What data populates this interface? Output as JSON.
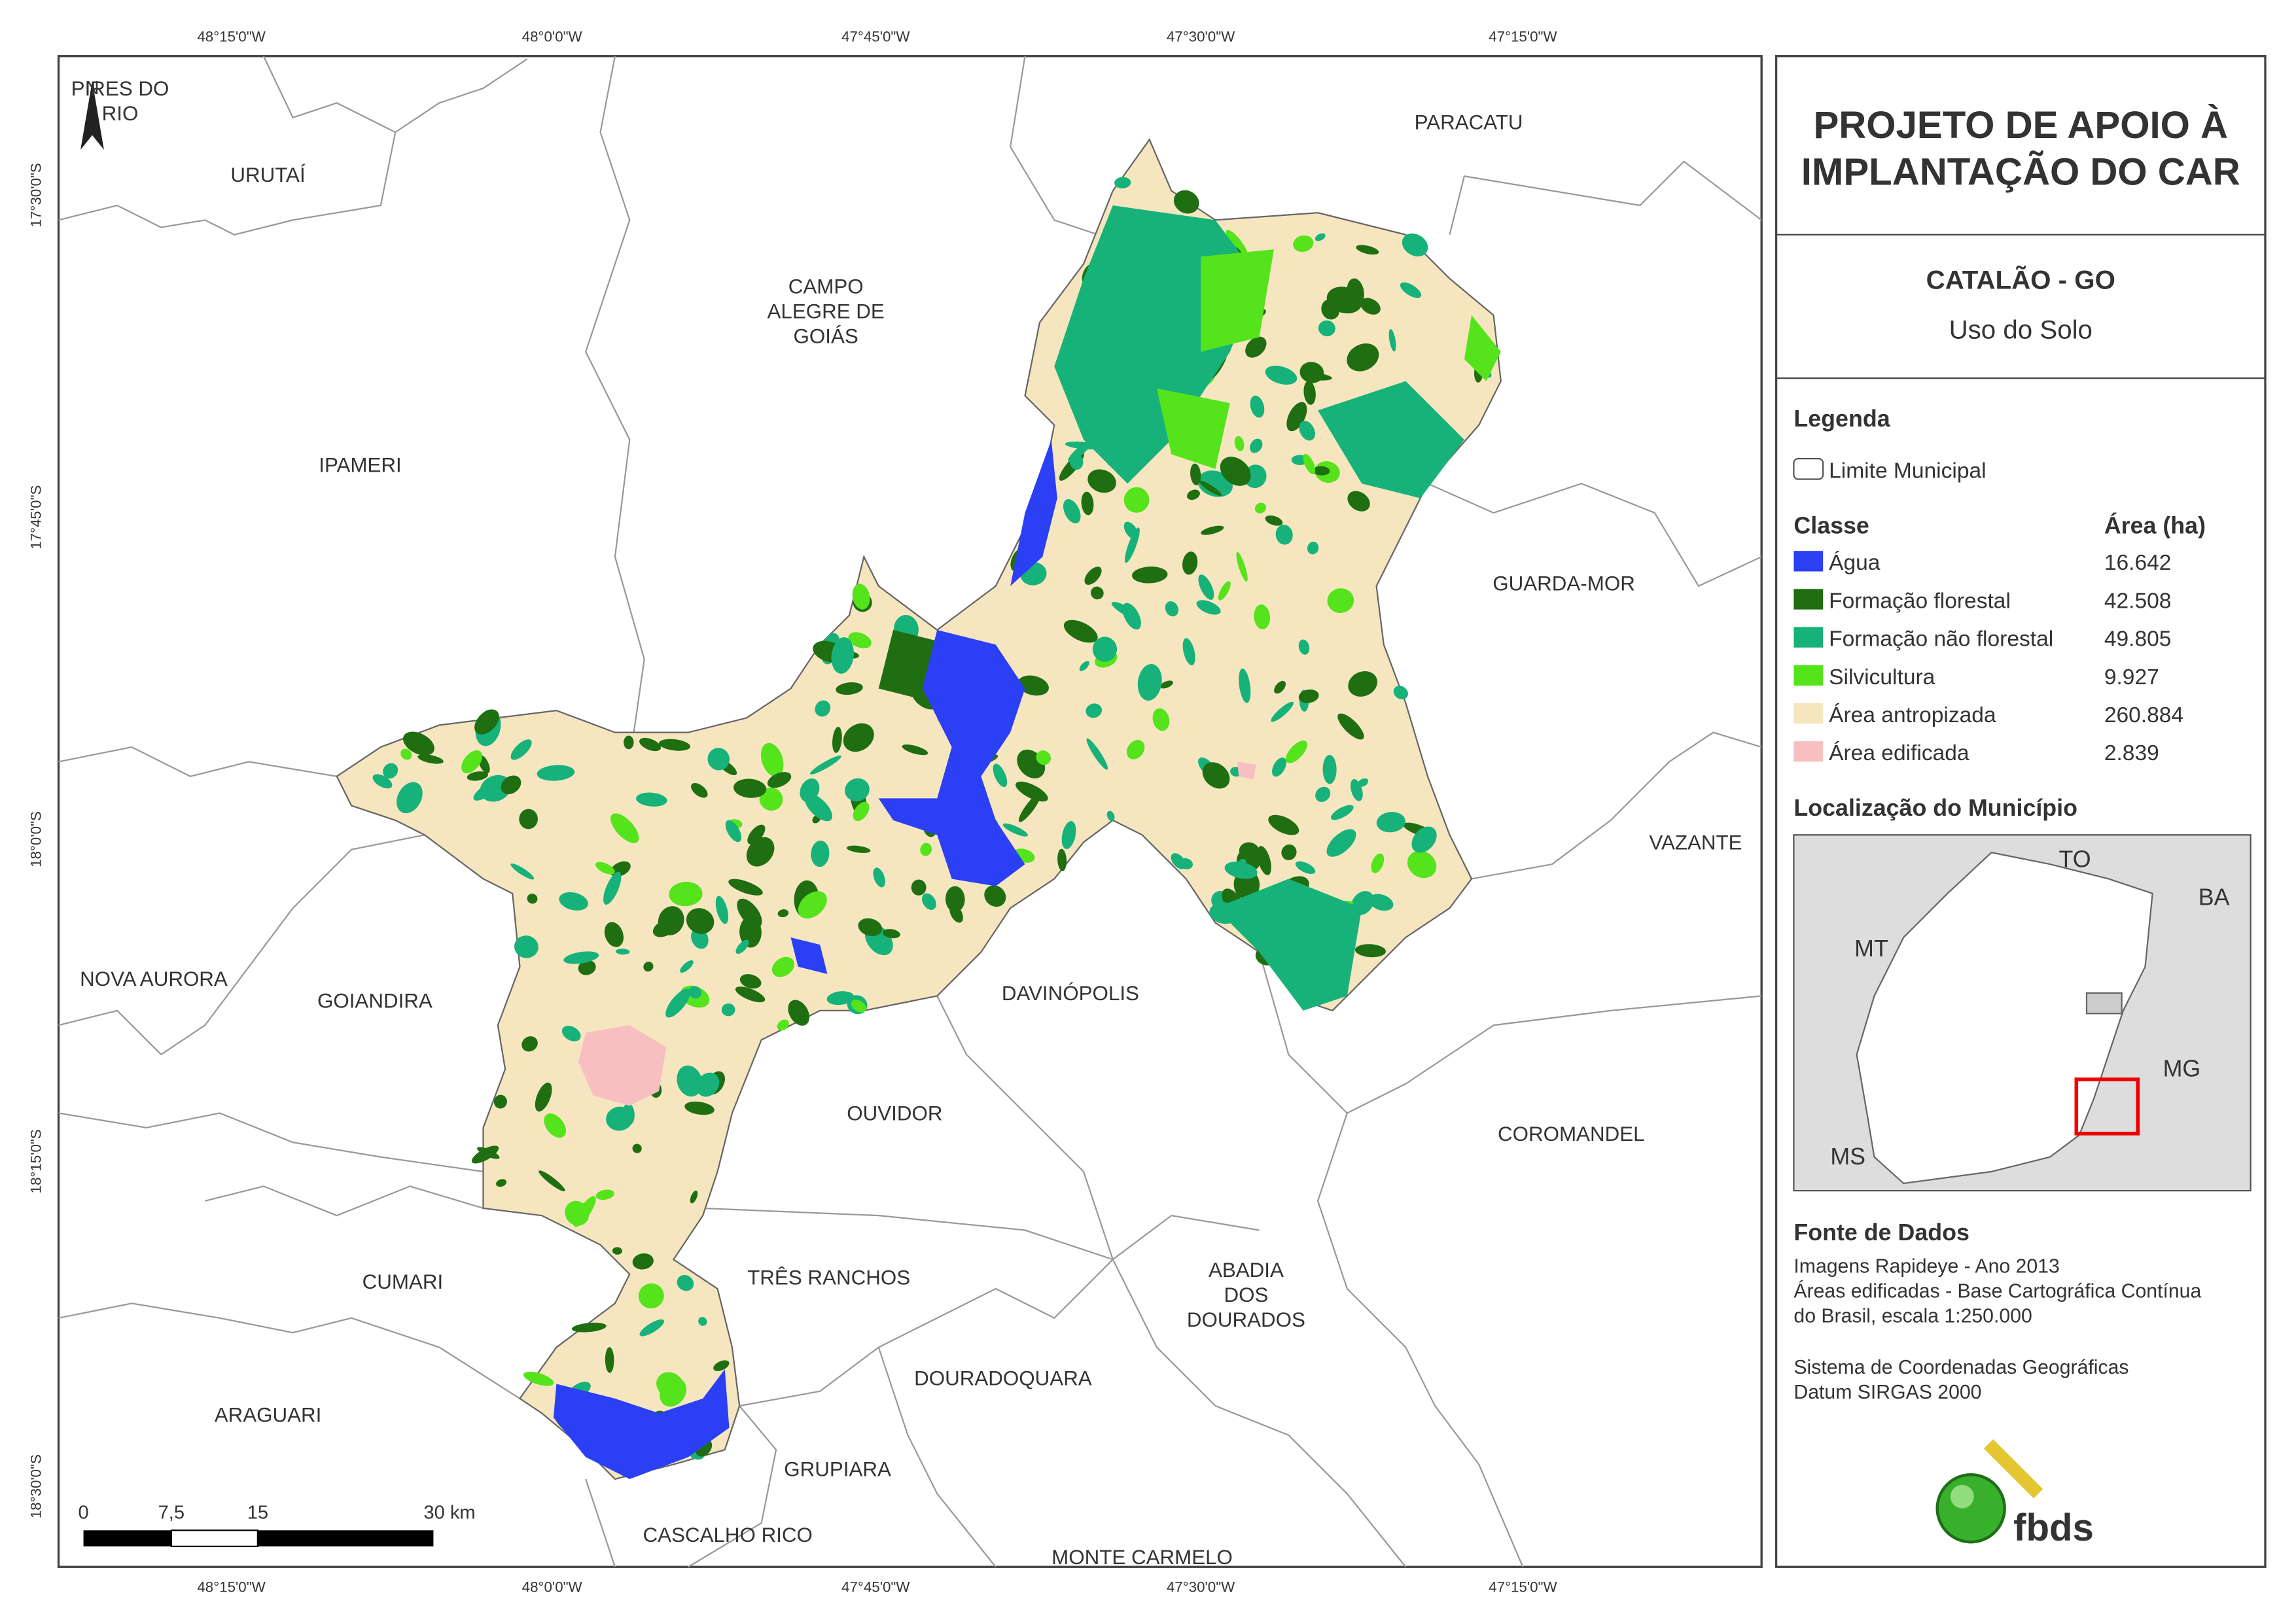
{
  "title": [
    "PROJETO DE APOIO À",
    "IMPLANTAÇÃO DO CAR"
  ],
  "place": "CATALÃO - GO",
  "theme": "Uso do Solo",
  "legend": {
    "title": "Legenda",
    "boundary": "Limite Municipal",
    "class_header": "Classe",
    "area_header": "Área (ha)",
    "classes": [
      {
        "name": "Água",
        "color": "#2b3ff5",
        "area": "16.642"
      },
      {
        "name": "Formação florestal",
        "color": "#1f6e12",
        "area": "42.508"
      },
      {
        "name": "Formação não florestal",
        "color": "#17b27a",
        "area": "49.805"
      },
      {
        "name": "Silvicultura",
        "color": "#55e31c",
        "area": "9.927"
      },
      {
        "name": "Área antropizada",
        "color": "#f6e6c0",
        "area": "260.884"
      },
      {
        "name": "Área edificada",
        "color": "#f8bfc3",
        "area": "2.839"
      }
    ]
  },
  "location": {
    "title": "Localização do Município",
    "labels": [
      "TO",
      "BA",
      "MT",
      "MG",
      "MS"
    ]
  },
  "sources": {
    "title": "Fonte de Dados",
    "lines": [
      "Imagens Rapideye - Ano 2013",
      "Áreas edificadas - Base Cartográfica Contínua",
      "do Brasil, escala 1:250.000",
      "Sistema de Coordenadas Geográficas",
      "Datum SIRGAS 2000"
    ]
  },
  "logo": "fbds",
  "map": {
    "north": "N",
    "longitude_labels": [
      "48°15'0\"W",
      "48°0'0\"W",
      "47°45'0\"W",
      "47°30'0\"W",
      "47°15'0\"W"
    ],
    "latitude_labels": [
      "17°30'0\"S",
      "17°45'0\"S",
      "18°0'0\"S",
      "18°15'0\"S",
      "18°30'0\"S"
    ],
    "scale_labels": [
      "0",
      "7,5",
      "15",
      "30 km"
    ],
    "municipalities": [
      [
        "PIRES DO",
        "RIO"
      ],
      [
        "URUTAÍ"
      ],
      [
        "CAMPO",
        "ALEGRE DE",
        "GOIÁS"
      ],
      [
        "PARACATU"
      ],
      [
        "IPAMERI"
      ],
      [
        "GUARDA-MOR"
      ],
      [
        "VAZANTE"
      ],
      [
        "NOVA AURORA"
      ],
      [
        "GOIANDIRA"
      ],
      [
        "DAVINÓPOLIS"
      ],
      [
        "OUVIDOR"
      ],
      [
        "COROMANDEL"
      ],
      [
        "CUMARI"
      ],
      [
        "TRÊS RANCHOS"
      ],
      [
        "ABADIA",
        "DOS",
        "DOURADOS"
      ],
      [
        "DOURADOQUARA"
      ],
      [
        "ARAGUARI"
      ],
      [
        "GRUPIARA"
      ],
      [
        "CASCALHO RICO"
      ],
      [
        "MONTE CARMELO"
      ]
    ]
  }
}
